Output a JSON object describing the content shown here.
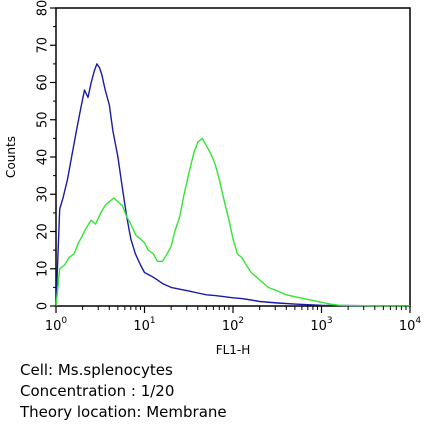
{
  "chart_data": {
    "type": "line",
    "title": "",
    "xlabel": "FL1-H",
    "ylabel": "Counts",
    "x_scale": "log",
    "xlim": [
      1,
      10000
    ],
    "ylim": [
      0,
      80
    ],
    "grid": false,
    "x_ticks": [
      {
        "base": "10",
        "exp": "0"
      },
      {
        "base": "10",
        "exp": "1"
      },
      {
        "base": "10",
        "exp": "2"
      },
      {
        "base": "10",
        "exp": "3"
      },
      {
        "base": "10",
        "exp": "4"
      }
    ],
    "y_ticks": [
      "0",
      "10",
      "20",
      "30",
      "40",
      "50",
      "60",
      "70",
      "80"
    ],
    "series": [
      {
        "color": "#1a1aa6",
        "x": [
          1,
          1.1,
          1.2,
          1.35,
          1.5,
          1.7,
          1.9,
          2.1,
          2.3,
          2.5,
          2.7,
          2.9,
          3.1,
          3.3,
          3.6,
          4,
          4.4,
          5,
          5.6,
          6.3,
          7,
          7.9,
          9,
          10,
          12,
          14,
          16,
          20,
          25,
          32,
          40,
          50,
          63,
          80,
          100,
          126,
          160,
          200,
          320,
          500,
          800,
          1000,
          10000
        ],
        "y": [
          0,
          26,
          29,
          34,
          40,
          47,
          53,
          58,
          56,
          60,
          63,
          65,
          64,
          62,
          58,
          54,
          47,
          40,
          32,
          24,
          18,
          14,
          11,
          9,
          8,
          7,
          6,
          5,
          4.5,
          4,
          3.5,
          3,
          2.8,
          2.5,
          2.2,
          2,
          1.6,
          1.2,
          0.8,
          0.5,
          0.3,
          0.2,
          0
        ]
      },
      {
        "color": "#32e632",
        "x": [
          1,
          1.1,
          1.25,
          1.4,
          1.6,
          1.8,
          2,
          2.2,
          2.5,
          2.8,
          3.2,
          3.6,
          4,
          4.5,
          5,
          5.6,
          6.3,
          7,
          8,
          9,
          10,
          11,
          12.6,
          14,
          16,
          18,
          20,
          22,
          25,
          28,
          32,
          36,
          40,
          45,
          50,
          56,
          63,
          70,
          80,
          90,
          100,
          112,
          126,
          141,
          160,
          200,
          250,
          320,
          400,
          500,
          630,
          800,
          1000,
          1260,
          1600,
          2000,
          10000
        ],
        "y": [
          0,
          10,
          11,
          13,
          14,
          17,
          19,
          21,
          23,
          22,
          25,
          27,
          28,
          29,
          28,
          27,
          24,
          22,
          19,
          18,
          17,
          15,
          14,
          12,
          12,
          14,
          16,
          20,
          24,
          30,
          36,
          41,
          44,
          45,
          43,
          41,
          38,
          34,
          28,
          23,
          18,
          14,
          13,
          11,
          9,
          7,
          5,
          4,
          3,
          2.5,
          2,
          1.5,
          1,
          0.5,
          0.2,
          0.1,
          0
        ]
      }
    ]
  },
  "caption": {
    "line1": "Cell: Ms.splenocytes",
    "line2": "Concentration : 1/20",
    "line3": "Theory location: Membrane"
  }
}
